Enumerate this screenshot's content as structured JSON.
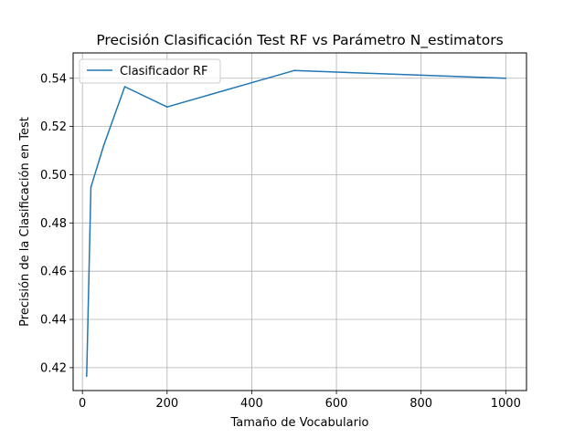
{
  "chart_data": {
    "type": "line",
    "title": "Precisión Clasificación Test RF vs Parámetro N_estimators",
    "xlabel": "Tamaño de Vocabulario",
    "ylabel": "Precisión de la Clasificación en Test",
    "xlim": [
      -22,
      1049
    ],
    "ylim": [
      0.4105,
      0.5505
    ],
    "grid": true,
    "legend_position": "top-left",
    "x_ticks": [
      0,
      200,
      400,
      600,
      800,
      1000
    ],
    "x_tick_labels": [
      "0",
      "200",
      "400",
      "600",
      "800",
      "1000"
    ],
    "y_ticks": [
      0.42,
      0.44,
      0.46,
      0.48,
      0.5,
      0.52,
      0.54
    ],
    "y_tick_labels": [
      "0.42",
      "0.44",
      "0.46",
      "0.48",
      "0.50",
      "0.52",
      "0.54"
    ],
    "series": [
      {
        "name": "Clasificador RF",
        "color": "#1f77b4",
        "x": [
          10,
          20,
          50,
          100,
          200,
          500,
          1000
        ],
        "y": [
          0.4165,
          0.4948,
          0.512,
          0.5365,
          0.5281,
          0.5432,
          0.54
        ]
      }
    ]
  }
}
